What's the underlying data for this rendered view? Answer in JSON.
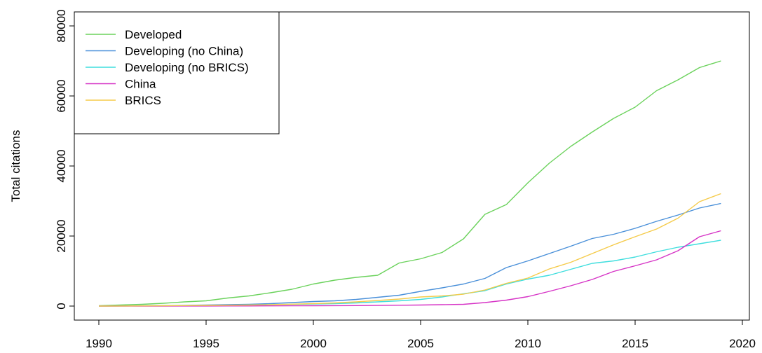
{
  "chart_data": {
    "type": "line",
    "title": "",
    "xlabel": "",
    "ylabel": "Total citations",
    "xlim": [
      1990,
      2020
    ],
    "ylim": [
      0,
      80000
    ],
    "xticks": [
      1990,
      1995,
      2000,
      2005,
      2010,
      2015,
      2020
    ],
    "yticks": [
      0,
      20000,
      40000,
      60000,
      80000
    ],
    "grid": false,
    "legend_position": "top-left",
    "x": [
      1990,
      1991,
      1992,
      1993,
      1994,
      1995,
      1996,
      1997,
      1998,
      1999,
      2000,
      2001,
      2002,
      2003,
      2004,
      2005,
      2006,
      2007,
      2008,
      2009,
      2010,
      2011,
      2012,
      2013,
      2014,
      2015,
      2016,
      2017,
      2018,
      2019
    ],
    "series": [
      {
        "name": "Developed",
        "color": "#6bd25c",
        "values": [
          100,
          300,
          500,
          800,
          1200,
          1500,
          2300,
          2900,
          3800,
          4800,
          6300,
          7400,
          8200,
          8800,
          12300,
          13500,
          15300,
          19200,
          26200,
          29000,
          35200,
          40800,
          45600,
          49700,
          53600,
          56800,
          61500,
          64600,
          68100,
          70000
        ]
      },
      {
        "name": "Developing (no China)",
        "color": "#4a90d9",
        "values": [
          0,
          50,
          100,
          150,
          200,
          300,
          400,
          500,
          700,
          1000,
          1300,
          1500,
          1900,
          2500,
          3100,
          4200,
          5200,
          6300,
          7900,
          11000,
          12900,
          15000,
          17100,
          19300,
          20500,
          22200,
          24200,
          26000,
          28000,
          29300
        ]
      },
      {
        "name": "Developing (no BRICS)",
        "color": "#3fdede",
        "values": [
          0,
          30,
          60,
          100,
          150,
          200,
          250,
          300,
          400,
          500,
          600,
          700,
          900,
          1200,
          1500,
          1900,
          2600,
          3500,
          4400,
          6300,
          7700,
          8800,
          10500,
          12200,
          12900,
          14000,
          15500,
          16800,
          17800,
          18800
        ]
      },
      {
        "name": "China",
        "color": "#d633c6",
        "values": [
          0,
          0,
          0,
          0,
          20,
          30,
          40,
          50,
          60,
          80,
          100,
          120,
          150,
          180,
          250,
          300,
          400,
          500,
          1000,
          1700,
          2700,
          4200,
          5800,
          7600,
          9900,
          11500,
          13200,
          15800,
          19800,
          21500
        ]
      },
      {
        "name": "BRICS",
        "color": "#f5cb4a",
        "values": [
          0,
          30,
          60,
          100,
          150,
          200,
          250,
          300,
          400,
          550,
          700,
          900,
          1200,
          1600,
          2000,
          2600,
          2900,
          3400,
          4600,
          6500,
          8000,
          10600,
          12500,
          15000,
          17500,
          19800,
          22000,
          25100,
          29800,
          32100
        ]
      }
    ]
  }
}
